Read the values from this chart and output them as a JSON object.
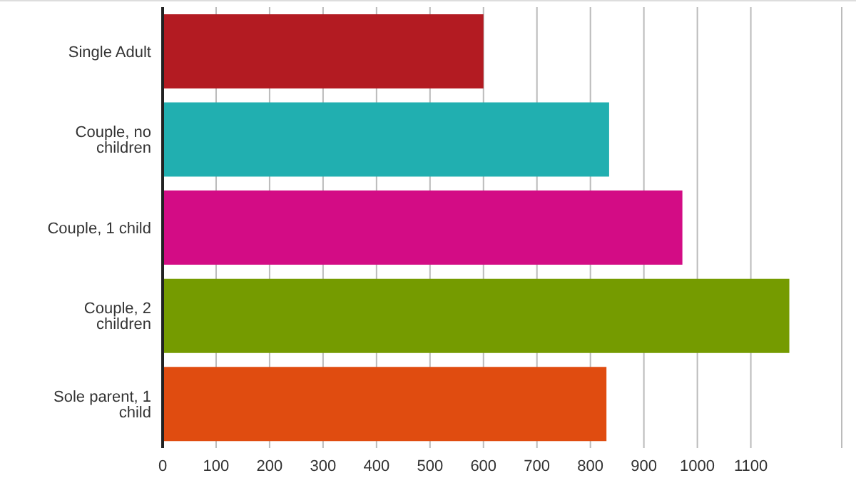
{
  "chart_data": {
    "type": "bar",
    "orientation": "horizontal",
    "categories": [
      "Single Adult",
      "Couple, no children",
      "Couple, 1 child",
      "Couple, 2 children",
      "Sole parent, 1 child"
    ],
    "values": [
      600,
      835,
      972,
      1172,
      830
    ],
    "colors": [
      "#b31b22",
      "#21afb0",
      "#d30c85",
      "#759b00",
      "#e04c10"
    ],
    "xlim": [
      0,
      1270
    ],
    "xticks": [
      0,
      100,
      200,
      300,
      400,
      500,
      600,
      700,
      800,
      900,
      1000,
      1100
    ],
    "grid": "x"
  }
}
